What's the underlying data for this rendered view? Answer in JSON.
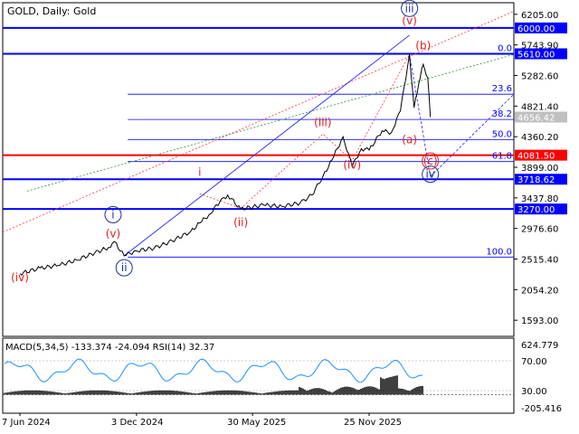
{
  "header": {
    "title": "GOLD, Daily:  Gold"
  },
  "colors": {
    "price_line": "#000000",
    "blue_level": "#0000ff",
    "red_level": "#ff0000",
    "fib_line": "#0000ff",
    "wave_red": "#e0201c",
    "wave_blue": "#1a2ea0",
    "trend_red": "#ff3333",
    "trend_green": "#2f8f2f",
    "trend_blue": "#2222ff",
    "macd_hist": "#000000",
    "rsi_line": "#1e90ff",
    "axis_text": "#000000"
  },
  "price_axis": {
    "ticks": [
      "6205.00",
      "5743.90",
      "5282.60",
      "4821.40",
      "4360.20",
      "3899.00",
      "3437.80",
      "2976.60",
      "2515.40",
      "2054.20",
      "1593.00"
    ],
    "current_label": "4656.42"
  },
  "levels": [
    {
      "name": "level-6000",
      "value": 6000.0,
      "label": "6000.00",
      "kind": "blue"
    },
    {
      "name": "level-5610",
      "value": 5610.0,
      "label": "5610.00",
      "kind": "blue"
    },
    {
      "name": "level-4081",
      "value": 4081.5,
      "label": "4081.50",
      "kind": "red"
    },
    {
      "name": "level-3718",
      "value": 3718.62,
      "label": "3718.62",
      "kind": "blue"
    },
    {
      "name": "level-3270",
      "value": 3270.0,
      "label": "3270.00",
      "kind": "blue"
    }
  ],
  "fib_levels": [
    {
      "label": "0.0",
      "value": 5610.0
    },
    {
      "label": "23.6",
      "value": 5001.0
    },
    {
      "label": "38.2",
      "value": 4620.0
    },
    {
      "label": "50.0",
      "value": 4315.0
    },
    {
      "label": "61.8",
      "value": 3985.0
    },
    {
      "label": "100.0",
      "value": 2545.0
    }
  ],
  "wave_labels": [
    {
      "text": "(iv)",
      "color": "red",
      "circled": false,
      "date": "2024-06-07",
      "price": 2180
    },
    {
      "text": "(v)",
      "color": "red",
      "circled": false,
      "date": "2024-10-28",
      "price": 2845
    },
    {
      "text": "i",
      "color": "blue",
      "circled": true,
      "date": "2024-10-28",
      "price": 3130
    },
    {
      "text": "ii",
      "color": "blue",
      "circled": true,
      "date": "2024-11-14",
      "price": 2330
    },
    {
      "text": "i",
      "color": "red",
      "circled": false,
      "date": "2025-03-10",
      "price": 3770
    },
    {
      "text": "(ii)",
      "color": "red",
      "circled": false,
      "date": "2025-05-12",
      "price": 3010
    },
    {
      "text": "(iii)",
      "color": "red",
      "circled": false,
      "date": "2025-09-15",
      "price": 4520
    },
    {
      "text": "(iv)",
      "color": "red",
      "circled": false,
      "date": "2025-10-30",
      "price": 3880
    },
    {
      "text": "(a)",
      "color": "red",
      "circled": false,
      "date": "2026-01-26",
      "price": 4260
    },
    {
      "text": "(v)",
      "color": "red",
      "circled": false,
      "date": "2026-01-26",
      "price": 6050
    },
    {
      "text": "iii",
      "color": "blue",
      "circled": true,
      "date": "2026-01-26",
      "price": 6240
    },
    {
      "text": "(b)",
      "color": "red",
      "circled": false,
      "date": "2026-02-16",
      "price": 5675
    },
    {
      "text": "(c)",
      "color": "red",
      "circled": true,
      "date": "2026-02-27",
      "price": 3940
    },
    {
      "text": "iv",
      "color": "blue",
      "circled": true,
      "date": "2026-02-27",
      "price": 3740
    }
  ],
  "indicator": {
    "label": "MACD(5,34,5) -133.374 -24.094 RSI(14) 32.37",
    "axis_ticks": [
      "624.779",
      "70.00",
      "30.00",
      "-205.416"
    ]
  },
  "time_axis": {
    "labels": [
      "7 Jun 2024",
      "3 Dec 2024",
      "30 May 2025",
      "25 Nov 2025"
    ]
  },
  "chart_data": {
    "type": "line",
    "title": "GOLD, Daily:  Gold",
    "xlabel": "",
    "ylabel": "",
    "ylim": [
      1350,
      6380
    ],
    "x": [
      "2024-06-07",
      "2024-07-08",
      "2024-08-05",
      "2024-09-02",
      "2024-09-30",
      "2024-10-21",
      "2024-10-30",
      "2024-11-14",
      "2024-12-02",
      "2024-12-30",
      "2025-01-27",
      "2025-02-24",
      "2025-03-10",
      "2025-03-24",
      "2025-04-10",
      "2025-04-22",
      "2025-05-12",
      "2025-06-16",
      "2025-07-14",
      "2025-08-11",
      "2025-08-29",
      "2025-09-15",
      "2025-09-29",
      "2025-10-16",
      "2025-10-30",
      "2025-11-13",
      "2025-11-25",
      "2025-12-15",
      "2025-12-29",
      "2026-01-12",
      "2026-01-26",
      "2026-02-02",
      "2026-02-09",
      "2026-02-16",
      "2026-02-23",
      "2026-02-27"
    ],
    "series": [
      {
        "values": [
          2295,
          2380,
          2420,
          2500,
          2610,
          2690,
          2780,
          2565,
          2640,
          2680,
          2790,
          2930,
          3060,
          3180,
          3380,
          3480,
          3270,
          3330,
          3310,
          3360,
          3480,
          3760,
          4010,
          4360,
          3910,
          4180,
          4160,
          4450,
          4420,
          4750,
          5600,
          4800,
          5150,
          5450,
          5250,
          4656
        ]
      }
    ],
    "indicator_rsi_last": 32.37,
    "indicator_macd": {
      "main": -133.374,
      "signal": -24.094
    }
  }
}
